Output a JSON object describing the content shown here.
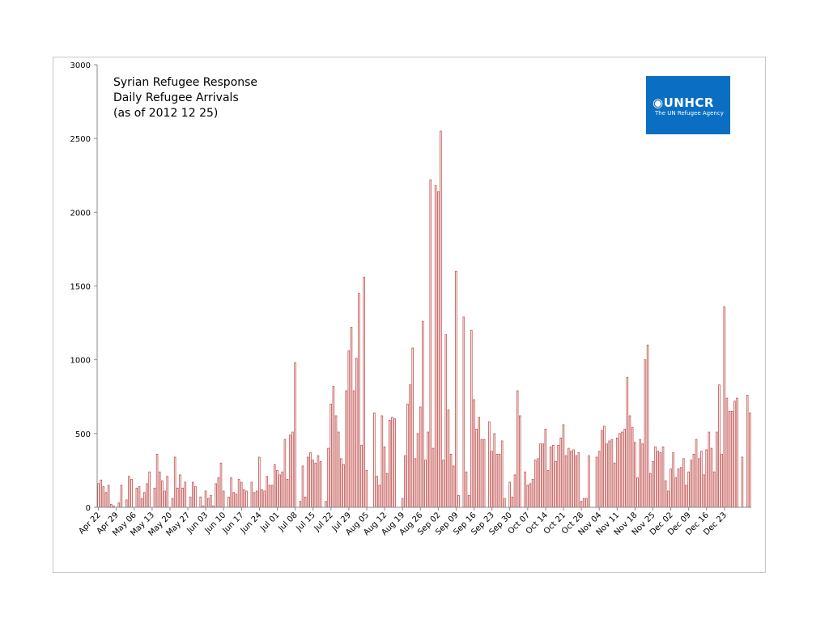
{
  "chart_data": {
    "type": "bar",
    "title": [
      "Syrian Refugee Response",
      "Daily Refugee Arrivals",
      "(as of 2012 12 25)"
    ],
    "xlabel": "",
    "ylabel": "",
    "ylim": [
      0,
      3000
    ],
    "yticks": [
      "0",
      "500",
      "1000",
      "1500",
      "2000",
      "2500",
      "3000"
    ],
    "xtick_labels": [
      "Apr 22",
      "Apr 29",
      "May 06",
      "May 13",
      "May 20",
      "May 27",
      "Jun 03",
      "Jun 10",
      "Jun 17",
      "Jun 24",
      "Jul 01",
      "Jul 08",
      "Jul 15",
      "Jul 22",
      "Jul 29",
      "Aug 05",
      "Aug 12",
      "Aug 19",
      "Aug 26",
      "Sep 02",
      "Sep 09",
      "Sep 16",
      "Sep 23",
      "Sep 30",
      "Oct 07",
      "Oct 14",
      "Oct 21",
      "Oct 28",
      "Nov 04",
      "Nov 11",
      "Nov 18",
      "Nov 25",
      "Dec 02",
      "Dec 09",
      "Dec 16",
      "Dec 23"
    ],
    "bar_color": "#c0504d",
    "grid": false,
    "legend": "none",
    "start_label": "Apr 22",
    "values": [
      160,
      185,
      140,
      100,
      150,
      20,
      10,
      0,
      30,
      150,
      0,
      50,
      210,
      190,
      0,
      130,
      140,
      60,
      100,
      160,
      240,
      0,
      130,
      360,
      240,
      180,
      110,
      210,
      0,
      60,
      340,
      130,
      220,
      130,
      170,
      0,
      70,
      170,
      140,
      0,
      70,
      10,
      110,
      60,
      80,
      10,
      160,
      200,
      300,
      110,
      0,
      70,
      200,
      100,
      90,
      190,
      170,
      120,
      110,
      0,
      170,
      100,
      110,
      340,
      120,
      110,
      210,
      150,
      150,
      290,
      250,
      220,
      240,
      460,
      190,
      490,
      510,
      980,
      0,
      40,
      280,
      70,
      340,
      370,
      320,
      300,
      350,
      310,
      0,
      40,
      400,
      700,
      820,
      620,
      510,
      330,
      290,
      790,
      1060,
      1220,
      790,
      1010,
      1450,
      420,
      1560,
      250,
      0,
      0,
      640,
      210,
      150,
      620,
      410,
      230,
      590,
      610,
      600,
      0,
      0,
      60,
      350,
      700,
      830,
      1080,
      330,
      500,
      680,
      1260,
      320,
      510,
      2220,
      400,
      2180,
      2140,
      2550,
      320,
      1170,
      660,
      360,
      280,
      1600,
      80,
      0,
      1290,
      240,
      80,
      1200,
      730,
      530,
      610,
      460,
      460,
      0,
      580,
      380,
      500,
      360,
      360,
      450,
      60,
      0,
      170,
      70,
      220,
      790,
      620,
      0,
      240,
      150,
      160,
      190,
      320,
      330,
      430,
      430,
      530,
      250,
      410,
      420,
      310,
      420,
      470,
      560,
      350,
      400,
      380,
      390,
      350,
      370,
      40,
      60,
      60,
      350,
      0,
      0,
      340,
      380,
      520,
      550,
      430,
      450,
      460,
      300,
      470,
      500,
      510,
      530,
      880,
      620,
      540,
      440,
      200,
      460,
      430,
      1000,
      1100,
      230,
      310,
      410,
      380,
      370,
      410,
      180,
      110,
      260,
      370,
      200,
      260,
      270,
      330,
      150,
      240,
      320,
      360,
      460,
      330,
      380,
      220,
      390,
      510,
      400,
      240,
      510,
      830,
      360,
      1360,
      740,
      650,
      650,
      720,
      740,
      0,
      340,
      0,
      760,
      640
    ]
  }
}
